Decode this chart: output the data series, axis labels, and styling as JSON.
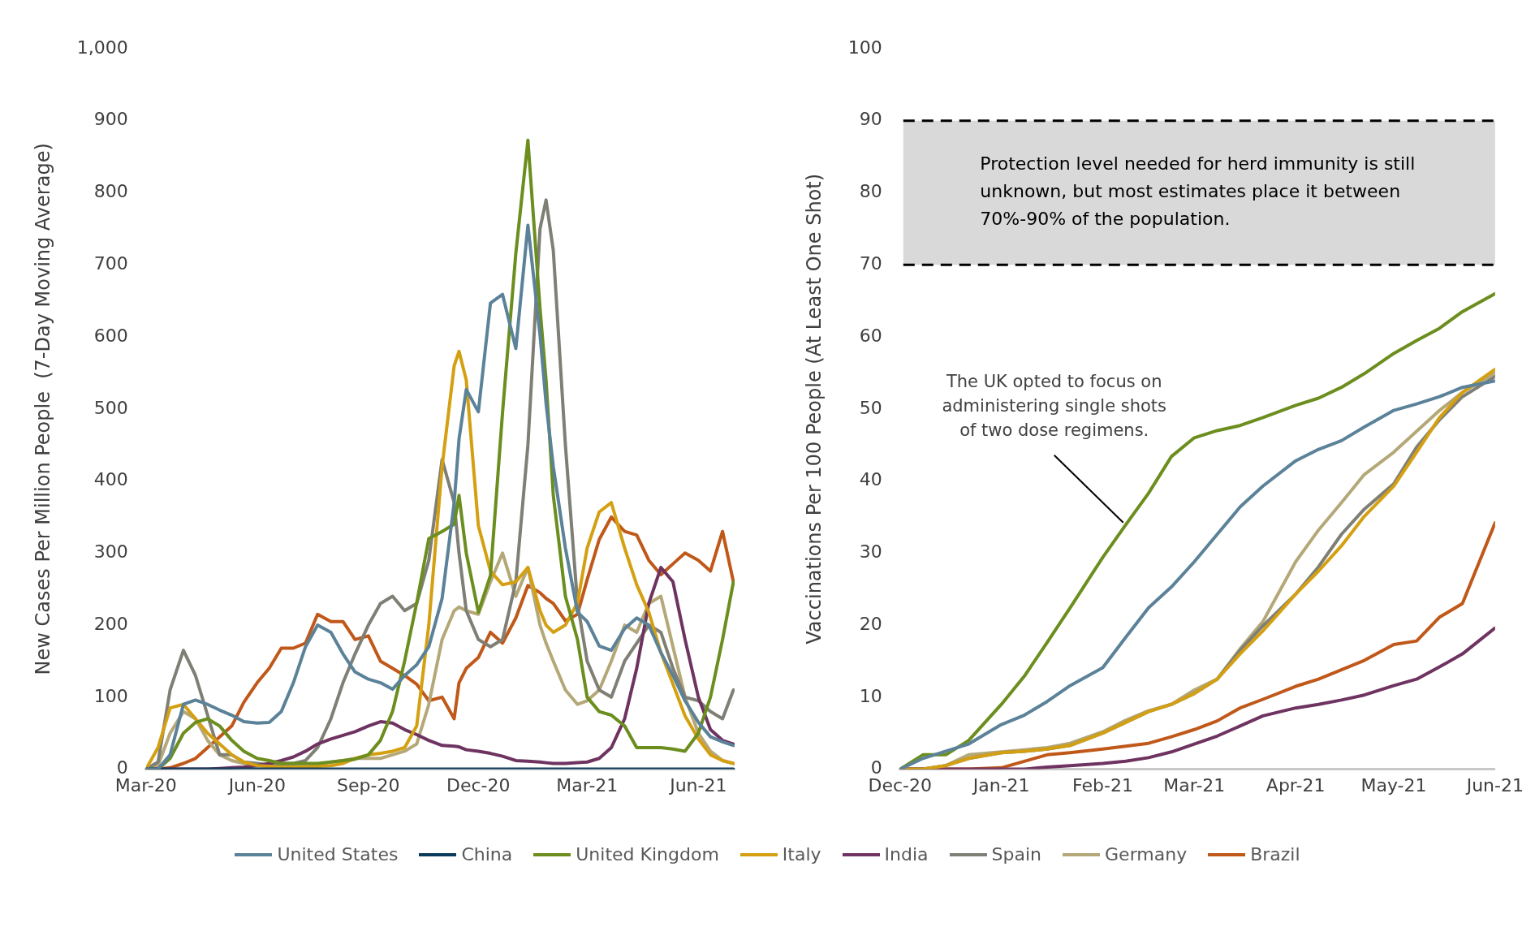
{
  "chart_data": [
    {
      "type": "line",
      "ylabel": "New Cases Per Million People  (7-Day Moving Average)",
      "legend": "bottom",
      "marker": "none",
      "x": [
        "2020-03-01",
        "2020-03-11",
        "2020-03-21",
        "2020-04-01",
        "2020-04-11",
        "2020-04-21",
        "2020-05-01",
        "2020-05-11",
        "2020-05-21",
        "2020-06-01",
        "2020-06-11",
        "2020-06-21",
        "2020-07-01",
        "2020-07-11",
        "2020-07-21",
        "2020-08-01",
        "2020-08-11",
        "2020-08-21",
        "2020-09-01",
        "2020-09-11",
        "2020-09-21",
        "2020-10-01",
        "2020-10-11",
        "2020-10-21",
        "2020-11-01",
        "2020-11-11",
        "2020-11-15",
        "2020-11-21",
        "2020-12-01",
        "2020-12-11",
        "2020-12-21",
        "2021-01-01",
        "2021-01-11",
        "2021-01-21",
        "2021-01-26",
        "2021-02-01",
        "2021-02-11",
        "2021-02-21",
        "2021-03-01",
        "2021-03-11",
        "2021-03-21",
        "2021-04-01",
        "2021-04-11",
        "2021-04-21",
        "2021-05-01",
        "2021-05-11",
        "2021-05-21",
        "2021-06-01",
        "2021-06-11",
        "2021-06-21",
        "2021-06-30"
      ],
      "series": [
        {
          "name": "United States",
          "color": "#5b8299",
          "values": [
            0,
            0,
            20,
            90,
            96,
            90,
            82,
            75,
            66,
            64,
            65,
            80,
            120,
            170,
            200,
            190,
            160,
            135,
            125,
            120,
            111,
            130,
            145,
            170,
            237,
            370,
            458,
            527,
            496,
            647,
            659,
            584,
            755,
            603,
            508,
            420,
            307,
            218,
            205,
            171,
            165,
            195,
            210,
            200,
            162,
            130,
            95,
            65,
            45,
            38,
            33
          ]
        },
        {
          "name": "China",
          "color": "#0b3a5c",
          "x": [
            "2020-03-01",
            "2021-06-30"
          ],
          "values": [
            0,
            0
          ]
        },
        {
          "name": "United Kingdom",
          "color": "#6b8e1e",
          "values": [
            0,
            0,
            15,
            50,
            65,
            70,
            60,
            40,
            25,
            15,
            12,
            8,
            8,
            8,
            8,
            10,
            12,
            14,
            20,
            40,
            80,
            150,
            231,
            320,
            330,
            340,
            380,
            300,
            218,
            269,
            495,
            716,
            873,
            640,
            540,
            380,
            240,
            180,
            100,
            80,
            75,
            60,
            30,
            30,
            30,
            28,
            25,
            50,
            100,
            180,
            260
          ]
        },
        {
          "name": "Italy",
          "color": "#d4a012",
          "values": [
            0,
            30,
            85,
            90,
            70,
            50,
            35,
            20,
            10,
            5,
            4,
            3,
            3,
            3,
            4,
            5,
            8,
            15,
            20,
            22,
            25,
            30,
            60,
            200,
            420,
            560,
            580,
            540,
            338,
            275,
            256,
            260,
            280,
            220,
            200,
            190,
            200,
            231,
            307,
            357,
            370,
            307,
            256,
            218,
            162,
            118,
            74,
            42,
            20,
            12,
            8
          ]
        },
        {
          "name": "India",
          "color": "#6e3360",
          "values": [
            0,
            0,
            0,
            0,
            0,
            0,
            1,
            2,
            3,
            5,
            8,
            12,
            17,
            25,
            35,
            42,
            47,
            52,
            60,
            66,
            64,
            55,
            48,
            40,
            33,
            32,
            31,
            27,
            25,
            22,
            18,
            12,
            11,
            10,
            9,
            8,
            8,
            9,
            10,
            15,
            30,
            70,
            140,
            230,
            280,
            260,
            180,
            100,
            55,
            40,
            35
          ]
        },
        {
          "name": "Spain",
          "color": "#7f7f76",
          "values": [
            0,
            10,
            110,
            165,
            130,
            75,
            20,
            20,
            10,
            8,
            6,
            8,
            8,
            12,
            30,
            70,
            120,
            160,
            200,
            230,
            240,
            220,
            230,
            290,
            430,
            370,
            300,
            220,
            180,
            170,
            180,
            260,
            450,
            750,
            790,
            720,
            450,
            230,
            150,
            110,
            100,
            150,
            175,
            200,
            190,
            140,
            100,
            95,
            80,
            70,
            110
          ]
        },
        {
          "name": "Germany",
          "color": "#b5a878",
          "values": [
            0,
            5,
            50,
            80,
            70,
            40,
            20,
            12,
            8,
            5,
            4,
            6,
            5,
            5,
            6,
            10,
            12,
            15,
            15,
            15,
            20,
            25,
            35,
            90,
            180,
            220,
            225,
            220,
            215,
            260,
            300,
            240,
            280,
            200,
            175,
            150,
            110,
            90,
            95,
            110,
            150,
            200,
            190,
            230,
            240,
            170,
            100,
            50,
            25,
            12,
            8
          ]
        },
        {
          "name": "Brazil",
          "color": "#c0581a",
          "values": [
            0,
            0,
            2,
            8,
            15,
            30,
            45,
            60,
            93,
            120,
            140,
            168,
            168,
            175,
            215,
            205,
            205,
            180,
            185,
            150,
            140,
            130,
            118,
            95,
            100,
            70,
            120,
            140,
            155,
            190,
            175,
            210,
            255,
            245,
            237,
            230,
            206,
            215,
            263,
            319,
            350,
            330,
            325,
            290,
            270,
            285,
            300,
            290,
            275,
            330,
            260
          ]
        }
      ],
      "xlim": [
        "2020-03-01",
        "2021-07-01"
      ],
      "xticks": [
        {
          "value": "2020-03-01",
          "label": "Mar-20"
        },
        {
          "value": "2020-06-01",
          "label": "Jun-20"
        },
        {
          "value": "2020-09-01",
          "label": "Sep-20"
        },
        {
          "value": "2020-12-01",
          "label": "Dec-20"
        },
        {
          "value": "2021-03-01",
          "label": "Mar-21"
        },
        {
          "value": "2021-06-01",
          "label": "Jun-21"
        }
      ],
      "ylim": [
        0,
        1000
      ],
      "yticks": [
        0,
        100,
        200,
        300,
        400,
        500,
        600,
        700,
        800,
        900,
        {
          "value": 1000,
          "label": "1,000"
        }
      ]
    },
    {
      "type": "line",
      "ylabel": "Vaccinations Per 100 People (At Least One Shot)",
      "marker": "none",
      "x": [
        "2020-12-01",
        "2020-12-08",
        "2020-12-15",
        "2020-12-22",
        "2021-01-01",
        "2021-01-08",
        "2021-01-15",
        "2021-01-22",
        "2021-02-01",
        "2021-02-08",
        "2021-02-15",
        "2021-02-22",
        "2021-03-01",
        "2021-03-08",
        "2021-03-15",
        "2021-03-22",
        "2021-04-01",
        "2021-04-08",
        "2021-04-15",
        "2021-04-22",
        "2021-05-01",
        "2021-05-08",
        "2021-05-15",
        "2021-05-22",
        "2021-06-01"
      ],
      "series": [
        {
          "color": "#5b8299",
          "values": [
            0,
            1.5,
            2.5,
            3.5,
            6.2,
            7.5,
            9.4,
            11.6,
            14.1,
            18.3,
            22.4,
            25.3,
            28.8,
            32.6,
            36.4,
            39.3,
            42.8,
            44.4,
            45.6,
            47.5,
            49.8,
            50.7,
            51.7,
            53,
            53.9
          ]
        },
        {
          "color": "#6b8e1e",
          "values": [
            0,
            2,
            2,
            4,
            9,
            12.9,
            17.6,
            22.4,
            29.4,
            33.9,
            38.3,
            43.4,
            46,
            47,
            47.7,
            48.8,
            50.5,
            51.5,
            53,
            54.9,
            57.7,
            59.5,
            61.2,
            63.5,
            66
          ]
        },
        {
          "color": "#d4a012",
          "values": [
            0,
            0,
            0.5,
            1.5,
            2.3,
            2.5,
            2.8,
            3.3,
            5,
            6.5,
            8,
            9,
            10.5,
            12.5,
            16,
            19.2,
            24.3,
            27.5,
            31,
            35.1,
            39.3,
            44,
            48.8,
            52.3,
            55.5
          ]
        },
        {
          "color": "#6e3360",
          "values": [
            0,
            0,
            0,
            0,
            0,
            0,
            0.3,
            0.5,
            0.8,
            1.1,
            1.6,
            2.4,
            3.5,
            4.6,
            6,
            7.4,
            8.5,
            9,
            9.6,
            10.3,
            11.6,
            12.5,
            14.2,
            16,
            19.6
          ]
        },
        {
          "color": "#7f7f76",
          "values": [
            0,
            0,
            0.5,
            1.5,
            2.3,
            2.5,
            2.8,
            3.3,
            5,
            6.5,
            8,
            9,
            10.5,
            12.5,
            16.5,
            19.9,
            24.3,
            28.1,
            32.6,
            36.1,
            39.6,
            44.7,
            48.5,
            51.7,
            54.5
          ]
        },
        {
          "color": "#b5a878",
          "values": [
            0,
            0,
            0.5,
            2,
            2.4,
            2.7,
            3,
            3.6,
            5.2,
            6.8,
            8.1,
            9,
            11,
            12.5,
            16.7,
            20.5,
            28.8,
            33.2,
            37,
            40.9,
            44,
            46.9,
            49.8,
            52.3,
            55
          ]
        },
        {
          "color": "#c0581a",
          "values": [
            0,
            0,
            0,
            0,
            0.2,
            1.1,
            2,
            2.3,
            2.8,
            3.2,
            3.6,
            4.5,
            5.5,
            6.7,
            8.5,
            9.7,
            11.5,
            12.5,
            13.8,
            15.1,
            17.3,
            17.8,
            21.1,
            23,
            34.2
          ]
        }
      ],
      "xlim": [
        "2020-12-01",
        "2021-06-01"
      ],
      "xticks": [
        {
          "value": "2020-12-01",
          "label": "Dec-20"
        },
        {
          "value": "2021-01-01",
          "label": "Jan-21"
        },
        {
          "value": "2021-02-01",
          "label": "Feb-21"
        },
        {
          "value": "2021-03-01",
          "label": "Mar-21"
        },
        {
          "value": "2021-04-01",
          "label": "Apr-21"
        },
        {
          "value": "2021-05-01",
          "label": "May-21"
        },
        {
          "value": "2021-06-01",
          "label": "Jun-21"
        }
      ],
      "ylim": [
        0,
        100
      ],
      "yticks": [
        0,
        10,
        20,
        30,
        40,
        50,
        60,
        70,
        80,
        90,
        100
      ],
      "bands": [
        {
          "axis": "y",
          "from": 70,
          "to": 90,
          "color": "#d9d9d9",
          "label": "Protection level needed for herd immunity is still unknown, but most estimates place it between 70%-90% of the population."
        }
      ],
      "ref_lines": [
        {
          "axis": "y",
          "value": 90,
          "color": "#000000",
          "line_style": "dashed"
        },
        {
          "axis": "y",
          "value": 70,
          "color": "#000000",
          "line_style": "dashed"
        }
      ],
      "annotations": [
        {
          "text": "The UK opted to focus on administering single shots of two dose regimens.",
          "x": "2021-02-08",
          "y": 33.9
        }
      ]
    }
  ]
}
